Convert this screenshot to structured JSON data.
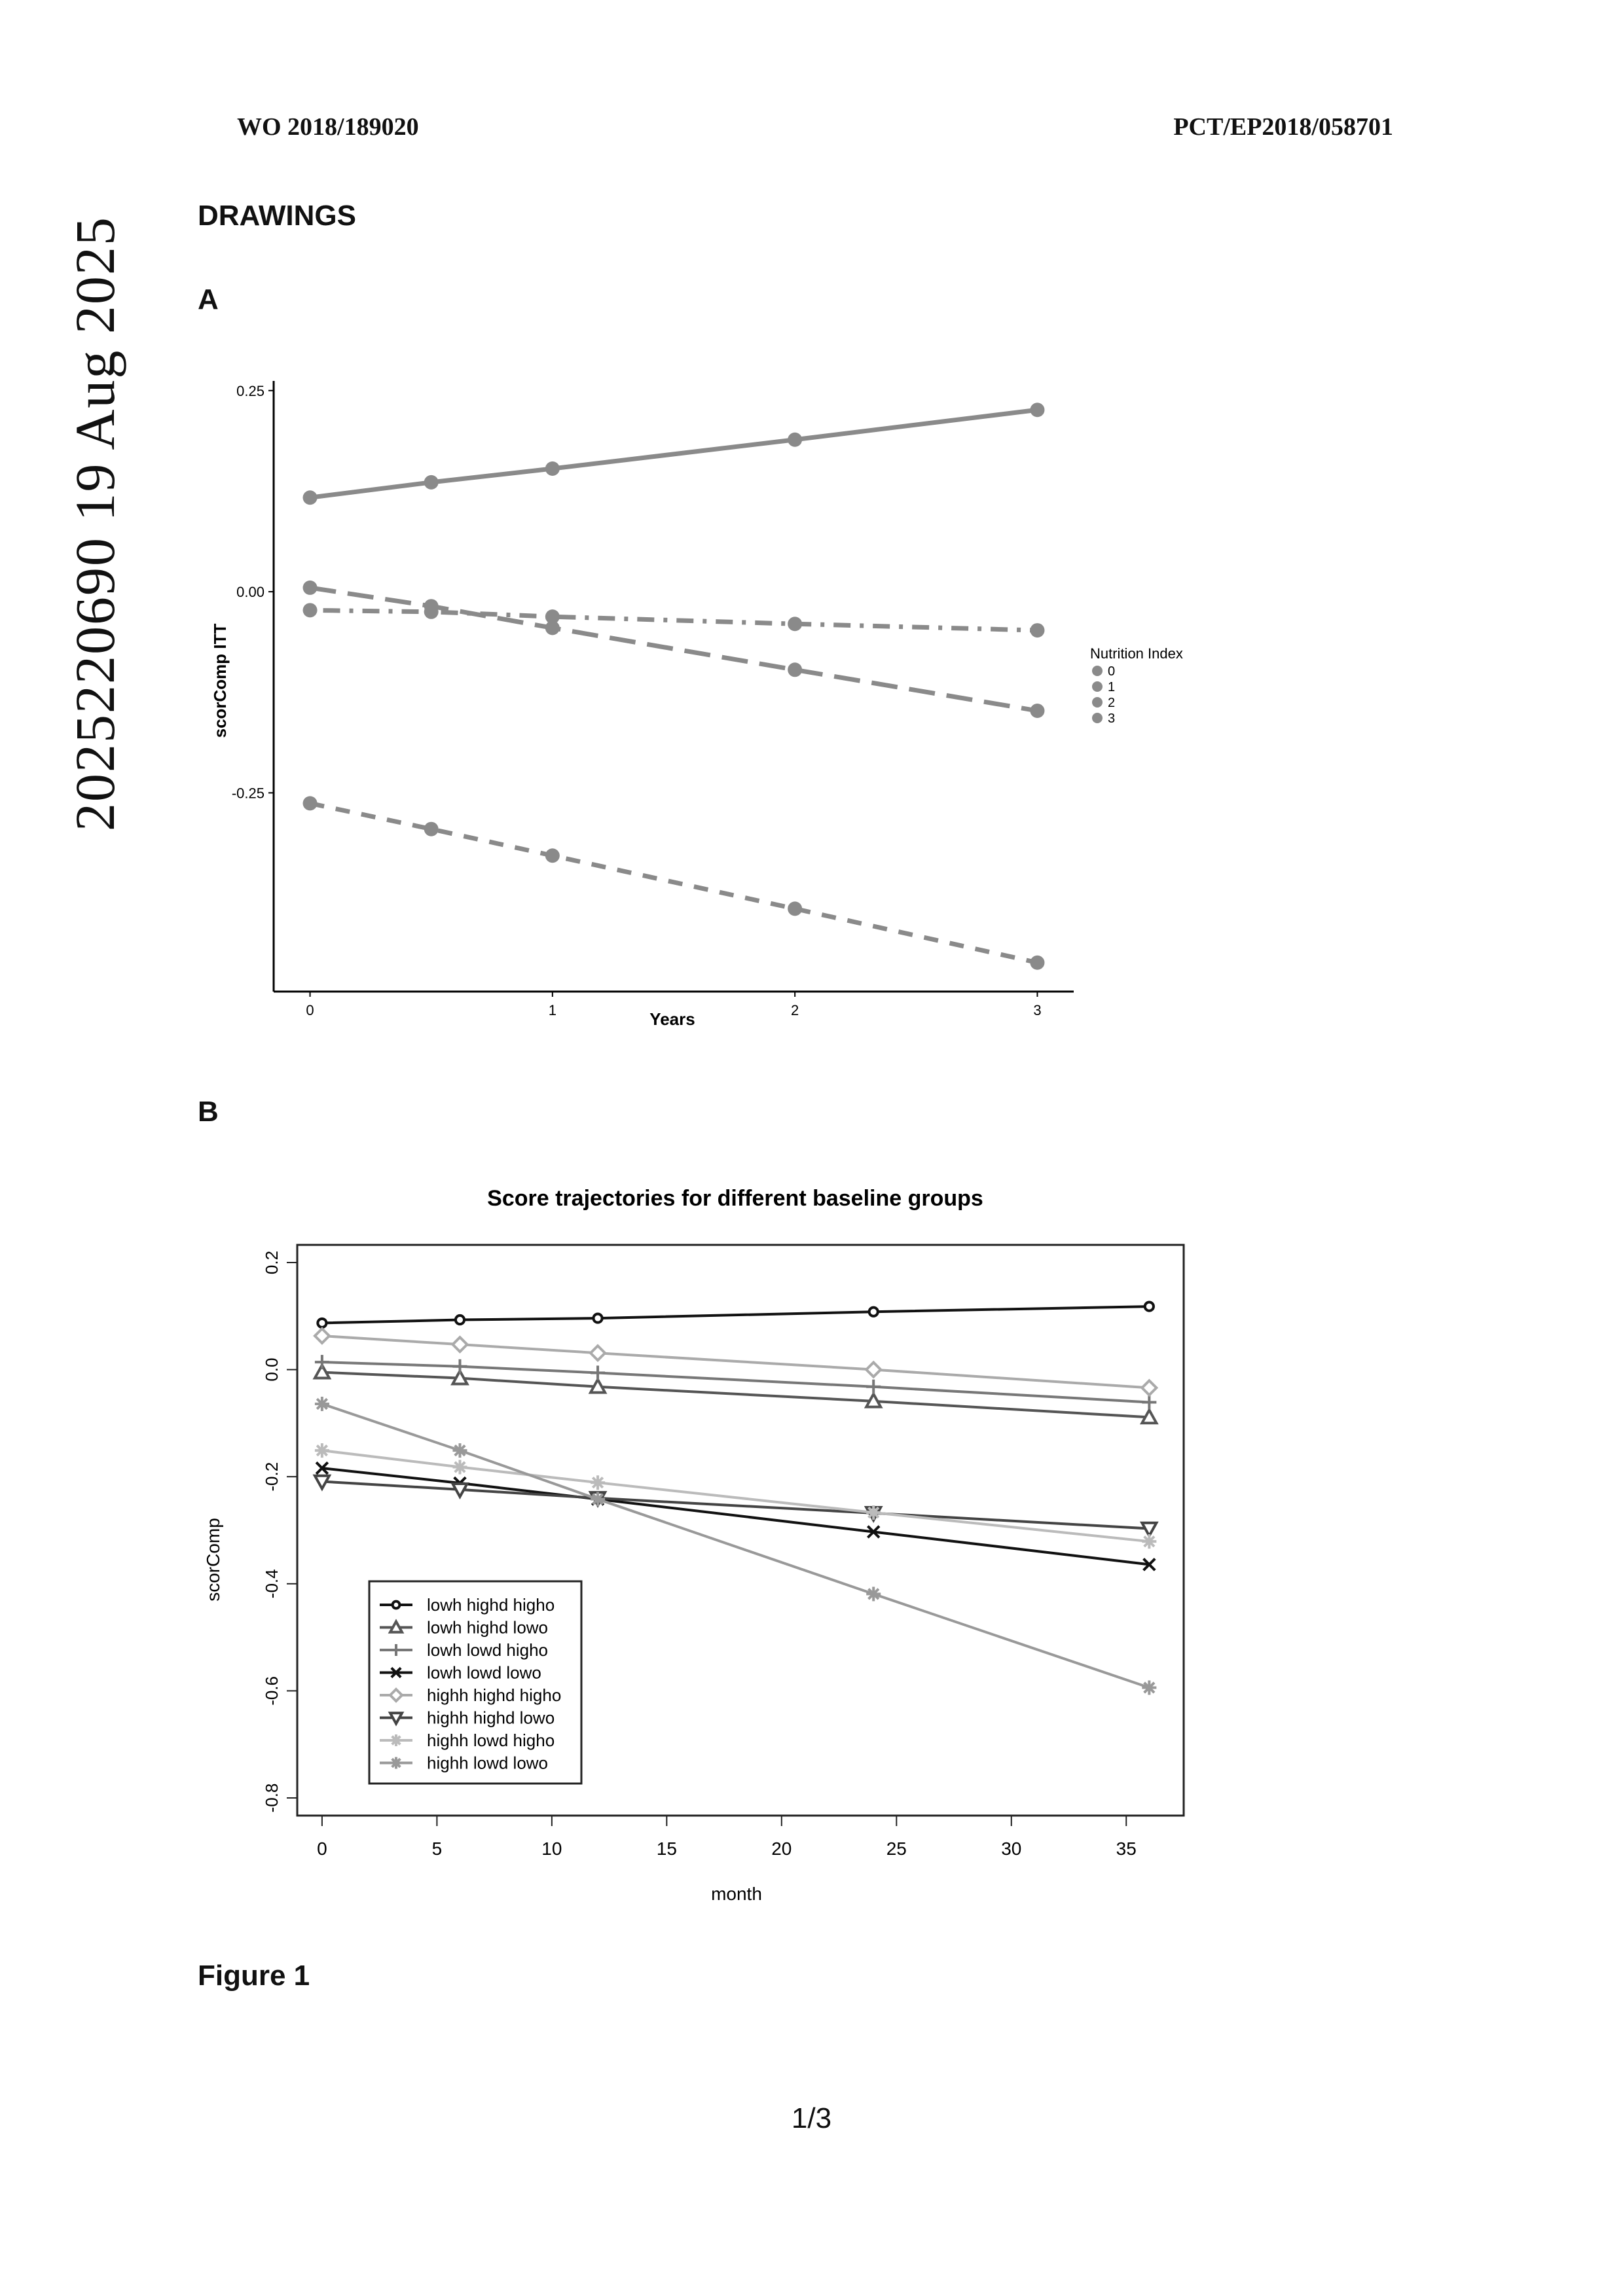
{
  "header": {
    "left": "WO 2018/189020",
    "right": "PCT/EP2018/058701"
  },
  "side_text": "2025220690     19 Aug 2025",
  "section_title": "DRAWINGS",
  "panel_a_label": "A",
  "panel_b_label": "B",
  "figure_caption": "Figure 1",
  "page_number": "1/3",
  "chart_data": [
    {
      "type": "line",
      "title": "",
      "xlabel": "Years",
      "ylabel": "scorComp ITT",
      "xlim": [
        -0.15,
        3.15
      ],
      "ylim": [
        -0.497,
        0.262
      ],
      "xticks": [
        0,
        1,
        2,
        3
      ],
      "xtick_labels": [
        "0",
        "1",
        "2",
        "3"
      ],
      "yticks": [
        0.25,
        0,
        -0.25
      ],
      "ytick_labels": [
        "0.25",
        "0.00",
        "-0.25"
      ],
      "grid": false,
      "legend": {
        "title": "Nutrition Index",
        "placement": "right",
        "entries": [
          "0",
          "1",
          "2",
          "3"
        ]
      },
      "x": [
        0,
        0.5,
        1,
        2,
        3
      ],
      "series": [
        {
          "name": "0",
          "values": [
            0.117,
            0.136,
            0.153,
            0.189,
            0.226
          ],
          "dash": "solid",
          "color": "#8a8a8a"
        },
        {
          "name": "1",
          "values": [
            0.005,
            -0.018,
            -0.045,
            -0.097,
            -0.148
          ],
          "dash": "longdash",
          "color": "#8a8a8a"
        },
        {
          "name": "2",
          "values": [
            -0.023,
            -0.025,
            -0.031,
            -0.04,
            -0.048
          ],
          "dash": "dotdash",
          "color": "#8a8a8a"
        },
        {
          "name": "3",
          "values": [
            -0.263,
            -0.295,
            -0.328,
            -0.394,
            -0.461
          ],
          "dash": "dashed",
          "color": "#8a8a8a"
        }
      ]
    },
    {
      "type": "line",
      "title": "Score trajectories for different baseline groups",
      "xlabel": "month",
      "ylabel": "scorComp",
      "xlim": [
        -1.08,
        37.5
      ],
      "ylim": [
        -0.833,
        0.233
      ],
      "xticks": [
        0,
        5,
        10,
        15,
        20,
        25,
        30,
        35
      ],
      "xtick_labels": [
        "0",
        "5",
        "10",
        "15",
        "20",
        "25",
        "30",
        "35"
      ],
      "yticks": [
        0.2,
        0,
        -0.2,
        -0.4,
        -0.6,
        -0.8
      ],
      "ytick_labels": [
        "0.2",
        "0.0",
        "-0.2",
        "-0.4",
        "-0.6",
        "-0.8"
      ],
      "grid": false,
      "legend": {
        "placement": "bottom-left",
        "entries": [
          "lowh highd higho",
          "lowh highd lowo",
          "lowh lowd higho",
          "lowh lowd lowo",
          "highh highd higho",
          "highh highd lowo",
          "highh lowd higho",
          "highh lowd lowo"
        ]
      },
      "x": [
        0,
        6,
        12,
        24,
        36
      ],
      "series": [
        {
          "name": "lowh highd higho",
          "marker": "circle",
          "color": "#111111",
          "values": [
            0.087,
            0.093,
            0.096,
            0.108,
            0.118
          ]
        },
        {
          "name": "lowh highd lowo",
          "marker": "triangle",
          "color": "#555555",
          "values": [
            -0.005,
            -0.016,
            -0.032,
            -0.059,
            -0.089
          ]
        },
        {
          "name": "lowh lowd higho",
          "marker": "plus",
          "color": "#777777",
          "values": [
            0.014,
            0.006,
            -0.006,
            -0.032,
            -0.061
          ]
        },
        {
          "name": "lowh lowd lowo",
          "marker": "x",
          "color": "#111111",
          "values": [
            -0.184,
            -0.212,
            -0.242,
            -0.303,
            -0.364
          ]
        },
        {
          "name": "highh highd higho",
          "marker": "diamond",
          "color": "#aaaaaa",
          "values": [
            0.063,
            0.047,
            0.031,
            0.0,
            -0.034
          ]
        },
        {
          "name": "highh highd lowo",
          "marker": "triangle-down",
          "color": "#444444",
          "values": [
            -0.209,
            -0.224,
            -0.24,
            -0.268,
            -0.297
          ]
        },
        {
          "name": "highh lowd higho",
          "marker": "asterisk",
          "color": "#bbbbbb",
          "values": [
            -0.151,
            -0.182,
            -0.211,
            -0.267,
            -0.321
          ]
        },
        {
          "name": "highh lowd lowo",
          "marker": "asterisk",
          "color": "#999999",
          "values": [
            -0.064,
            -0.151,
            -0.242,
            -0.419,
            -0.594
          ]
        }
      ]
    }
  ]
}
